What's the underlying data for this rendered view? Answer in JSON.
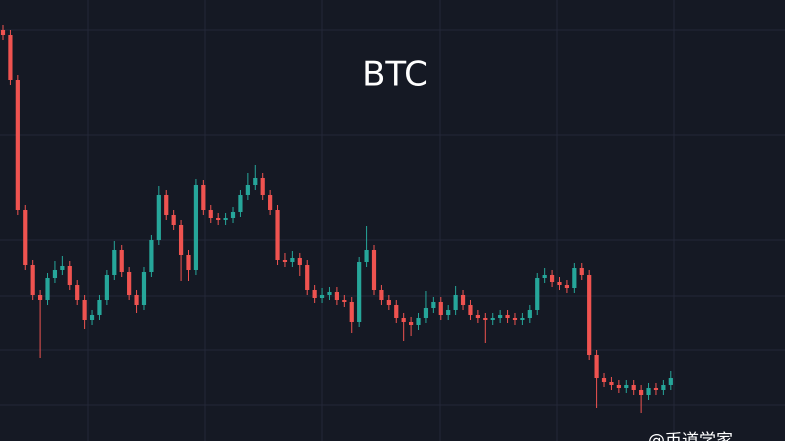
{
  "chart_data": {
    "type": "candlestick",
    "title": "BTC",
    "watermark": "@币道学家",
    "up_color": "#26a69a",
    "down_color": "#ef5350",
    "background": "#151924",
    "ylim": [
      0,
      441
    ],
    "open": [
      411,
      406,
      361,
      231,
      176,
      146,
      141,
      163,
      171,
      175,
      156,
      141,
      121,
      126,
      141,
      166,
      191,
      169,
      146,
      136,
      169,
      201,
      246,
      226,
      216,
      186,
      171,
      256,
      231,
      223,
      221,
      223,
      229,
      246,
      256,
      263,
      246,
      231,
      181,
      179,
      183,
      176,
      151,
      143,
      146,
      149,
      141,
      139,
      119,
      179,
      191,
      151,
      141,
      136,
      123,
      119,
      116,
      123,
      133,
      139,
      126,
      131,
      146,
      136,
      126,
      123,
      121,
      123,
      126,
      123,
      121,
      123,
      131,
      163,
      166,
      159,
      156,
      153,
      173,
      166,
      86,
      63,
      59,
      56,
      53,
      56,
      51,
      46,
      53,
      51,
      56
    ],
    "high": [
      416,
      411,
      366,
      236,
      181,
      151,
      168,
      180,
      185,
      180,
      161,
      146,
      131,
      146,
      171,
      200,
      196,
      174,
      151,
      174,
      206,
      255,
      251,
      231,
      221,
      191,
      262,
      261,
      236,
      228,
      228,
      234,
      251,
      268,
      276,
      268,
      251,
      236,
      188,
      190,
      188,
      181,
      156,
      153,
      154,
      154,
      146,
      144,
      184,
      215,
      196,
      156,
      146,
      141,
      128,
      124,
      128,
      150,
      144,
      144,
      136,
      155,
      151,
      141,
      131,
      128,
      128,
      131,
      131,
      128,
      128,
      136,
      168,
      173,
      171,
      164,
      161,
      178,
      178,
      171,
      91,
      68,
      64,
      61,
      61,
      61,
      56,
      58,
      58,
      61,
      70
    ],
    "low": [
      401,
      356,
      226,
      171,
      141,
      83,
      136,
      158,
      166,
      151,
      136,
      112,
      116,
      121,
      136,
      161,
      164,
      141,
      128,
      131,
      164,
      196,
      221,
      211,
      160,
      160,
      166,
      226,
      218,
      216,
      216,
      218,
      224,
      241,
      251,
      241,
      226,
      176,
      174,
      174,
      165,
      146,
      138,
      138,
      141,
      136,
      134,
      108,
      114,
      174,
      146,
      136,
      131,
      118,
      100,
      105,
      111,
      118,
      128,
      121,
      121,
      126,
      131,
      121,
      118,
      98,
      116,
      118,
      118,
      116,
      116,
      118,
      126,
      158,
      154,
      151,
      148,
      148,
      161,
      81,
      33,
      54,
      51,
      48,
      48,
      46,
      28,
      41,
      46,
      46,
      51
    ],
    "close": [
      406,
      361,
      231,
      176,
      146,
      141,
      163,
      171,
      175,
      156,
      141,
      121,
      126,
      141,
      166,
      191,
      169,
      146,
      136,
      169,
      201,
      246,
      226,
      216,
      186,
      171,
      256,
      231,
      223,
      221,
      223,
      229,
      246,
      256,
      263,
      246,
      231,
      181,
      179,
      183,
      176,
      151,
      143,
      146,
      149,
      141,
      139,
      119,
      179,
      191,
      151,
      141,
      136,
      123,
      119,
      116,
      123,
      133,
      139,
      126,
      131,
      146,
      136,
      126,
      123,
      121,
      123,
      126,
      123,
      121,
      123,
      131,
      163,
      166,
      159,
      156,
      153,
      173,
      166,
      86,
      63,
      59,
      56,
      53,
      56,
      51,
      46,
      53,
      51,
      56,
      63
    ]
  }
}
